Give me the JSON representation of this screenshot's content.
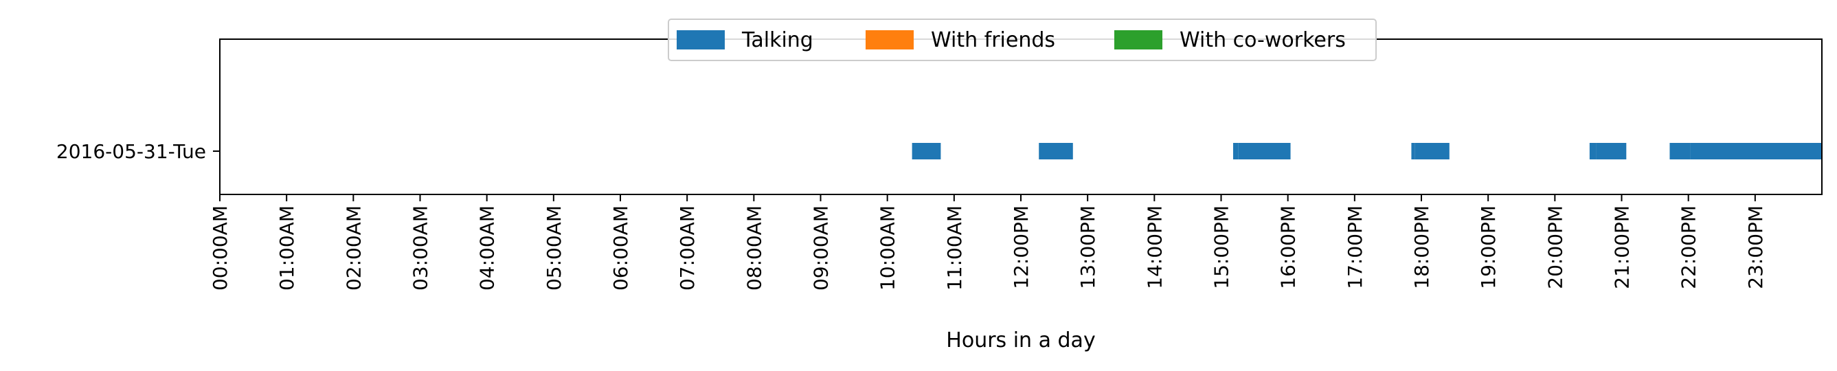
{
  "chart_data": {
    "type": "broken_barh",
    "xlabel": "Hours in a day",
    "ylabel": "",
    "xlim": [
      0,
      24
    ],
    "x_ticks": [
      "00:00AM",
      "01:00AM",
      "02:00AM",
      "03:00AM",
      "04:00AM",
      "05:00AM",
      "06:00AM",
      "07:00AM",
      "08:00AM",
      "09:00AM",
      "10:00AM",
      "11:00AM",
      "12:00PM",
      "13:00PM",
      "14:00PM",
      "15:00PM",
      "16:00PM",
      "17:00PM",
      "18:00PM",
      "19:00PM",
      "20:00PM",
      "21:00PM",
      "22:00PM",
      "23:00PM"
    ],
    "y_categories": [
      "2016-05-31-Tue"
    ],
    "legend_position": "top-center",
    "grid": false,
    "series": [
      {
        "name": "Talking",
        "color": "#1f77b4",
        "row": "2016-05-31-Tue",
        "intervals": [
          [
            10.37,
            10.8
          ],
          [
            12.27,
            12.78
          ],
          [
            15.18,
            15.26
          ],
          [
            15.26,
            16.04
          ],
          [
            17.85,
            17.9
          ],
          [
            17.9,
            18.42
          ],
          [
            20.52,
            20.62
          ],
          [
            20.62,
            21.07
          ],
          [
            21.72,
            22.03
          ],
          [
            22.03,
            24.0
          ]
        ]
      },
      {
        "name": "With friends",
        "color": "#ff7f0e",
        "row": "2016-05-31-Tue",
        "intervals": []
      },
      {
        "name": "With co-workers",
        "color": "#2ca02c",
        "row": "2016-05-31-Tue",
        "intervals": []
      }
    ]
  }
}
